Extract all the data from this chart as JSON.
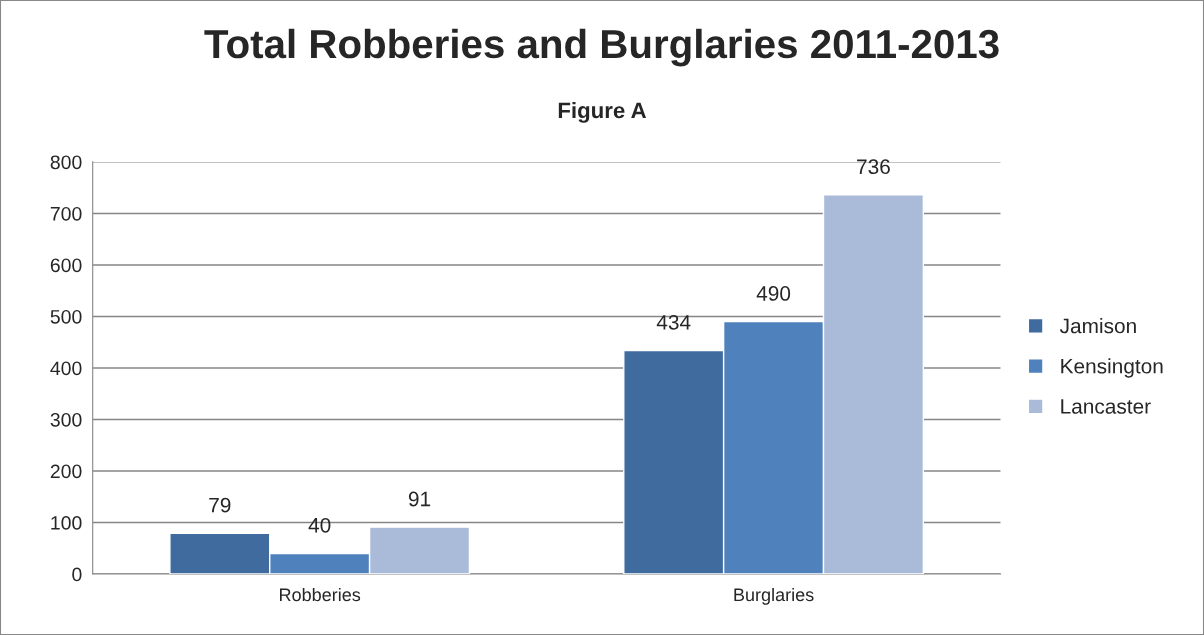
{
  "chart_data": {
    "type": "bar",
    "title": "Total Robberies and Burglaries 2011-2013",
    "subtitle": "Figure A",
    "categories": [
      "Robberies",
      "Burglaries"
    ],
    "series": [
      {
        "name": "Jamison",
        "color": "#3f6b9e",
        "values": [
          79,
          434
        ]
      },
      {
        "name": "Kensington",
        "color": "#4f81bd",
        "values": [
          40,
          490
        ]
      },
      {
        "name": "Lancaster",
        "color": "#a9bbd9",
        "values": [
          91,
          736
        ]
      }
    ],
    "ylim": [
      0,
      800
    ],
    "yticks": [
      0,
      100,
      200,
      300,
      400,
      500,
      600,
      700,
      800
    ],
    "grid": "y",
    "legend": "right",
    "data_labels": true
  }
}
